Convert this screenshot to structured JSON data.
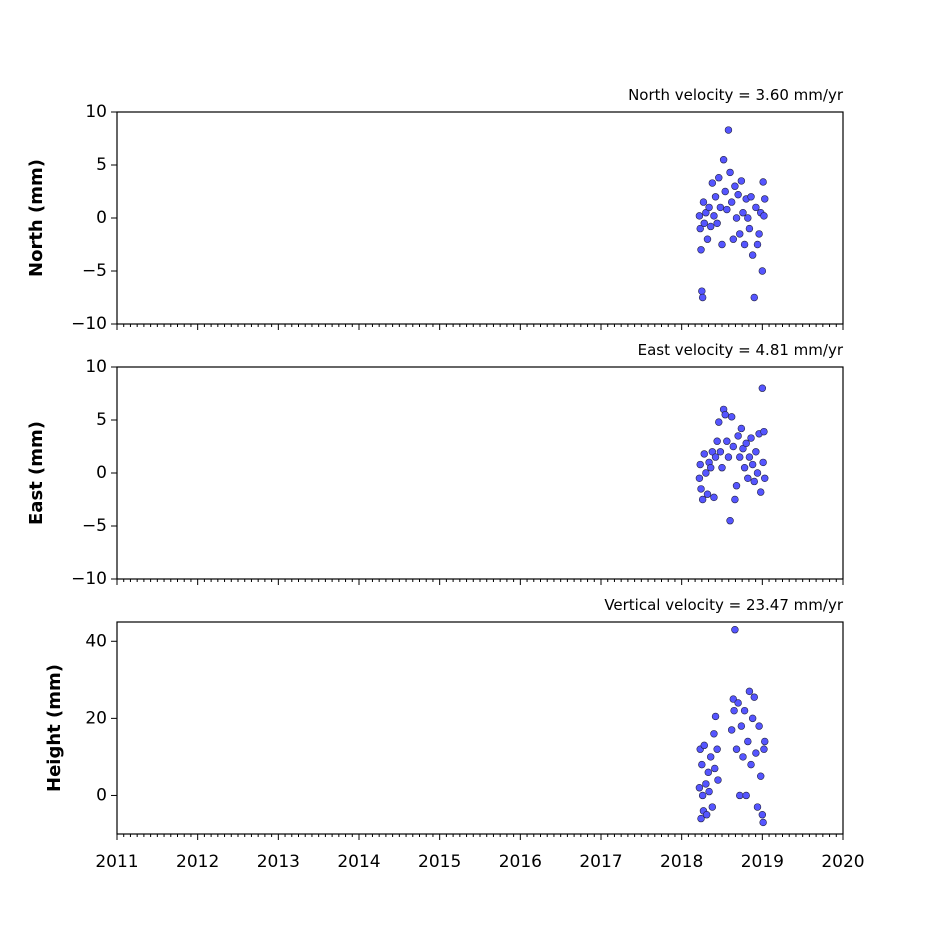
{
  "chart_data": [
    {
      "type": "scatter",
      "title": "North velocity = 3.60 mm/yr",
      "y_label": "North (mm)",
      "color": "#5555ff",
      "edge_color": "#222244",
      "xlim": [
        2011,
        2020
      ],
      "xticks": [
        2011,
        2012,
        2013,
        2014,
        2015,
        2016,
        2017,
        2018,
        2019,
        2020
      ],
      "ylim": [
        -10,
        10
      ],
      "yticks": [
        {
          "value": -10,
          "label": "−10"
        },
        {
          "value": -5,
          "label": "−5"
        },
        0,
        5,
        10
      ],
      "x": [
        2018.22,
        2018.23,
        2018.24,
        2018.25,
        2018.26,
        2018.27,
        2018.28,
        2018.3,
        2018.32,
        2018.34,
        2018.36,
        2018.38,
        2018.4,
        2018.42,
        2018.44,
        2018.46,
        2018.48,
        2018.5,
        2018.52,
        2018.54,
        2018.56,
        2018.58,
        2018.6,
        2018.62,
        2018.64,
        2018.66,
        2018.68,
        2018.7,
        2018.72,
        2018.74,
        2018.76,
        2018.78,
        2018.8,
        2018.82,
        2018.84,
        2018.86,
        2018.88,
        2018.9,
        2018.92,
        2018.94,
        2018.96,
        2018.98,
        2019.0,
        2019.01,
        2019.02,
        2019.03
      ],
      "values": [
        0.2,
        -1,
        -3,
        -6.9,
        -7.5,
        1.5,
        -0.5,
        0.5,
        -2,
        1,
        -0.8,
        3.3,
        0.2,
        2,
        -0.5,
        3.8,
        1,
        -2.5,
        5.5,
        2.5,
        0.8,
        8.3,
        4.3,
        1.5,
        -2,
        3,
        0,
        2.2,
        -1.5,
        3.5,
        0.5,
        -2.5,
        1.8,
        0,
        -1,
        2,
        -3.5,
        -7.5,
        1,
        -2.5,
        -1.5,
        0.5,
        -5,
        3.4,
        0.2,
        1.8
      ]
    },
    {
      "type": "scatter",
      "title": "East velocity = 4.81 mm/yr",
      "y_label": "East (mm)",
      "color": "#5555ff",
      "edge_color": "#222244",
      "xlim": [
        2011,
        2020
      ],
      "xticks": [
        2011,
        2012,
        2013,
        2014,
        2015,
        2016,
        2017,
        2018,
        2019,
        2020
      ],
      "ylim": [
        -10,
        10
      ],
      "yticks": [
        {
          "value": -10,
          "label": "−10"
        },
        {
          "value": -5,
          "label": "−5"
        },
        0,
        5,
        10
      ],
      "x": [
        2018.22,
        2018.23,
        2018.24,
        2018.26,
        2018.28,
        2018.3,
        2018.32,
        2018.34,
        2018.36,
        2018.38,
        2018.4,
        2018.42,
        2018.44,
        2018.46,
        2018.48,
        2018.5,
        2018.52,
        2018.54,
        2018.56,
        2018.58,
        2018.6,
        2018.62,
        2018.64,
        2018.66,
        2018.68,
        2018.7,
        2018.72,
        2018.74,
        2018.76,
        2018.78,
        2018.8,
        2018.82,
        2018.84,
        2018.86,
        2018.88,
        2018.9,
        2018.92,
        2018.94,
        2018.96,
        2018.98,
        2019.0,
        2019.01,
        2019.02,
        2019.03
      ],
      "values": [
        -0.5,
        0.8,
        -1.5,
        -2.5,
        1.8,
        0,
        -2,
        1,
        0.5,
        2,
        -2.3,
        1.5,
        3,
        4.8,
        2,
        0.5,
        6,
        5.5,
        3,
        1.5,
        -4.5,
        5.3,
        2.5,
        -2.5,
        -1.2,
        3.5,
        1.5,
        4.2,
        2.3,
        0.5,
        2.8,
        -0.5,
        1.5,
        3.3,
        0.8,
        -0.8,
        2,
        0,
        3.7,
        -1.8,
        8,
        1,
        3.9,
        -0.5
      ]
    },
    {
      "type": "scatter",
      "title": "Vertical velocity = 23.47 mm/yr",
      "y_label": "Height (mm)",
      "color": "#5555ff",
      "edge_color": "#222244",
      "xlim": [
        2011,
        2020
      ],
      "xticks": [
        2011,
        2012,
        2013,
        2014,
        2015,
        2016,
        2017,
        2018,
        2019,
        2020
      ],
      "xtick_labels": true,
      "ylim": [
        -10,
        45
      ],
      "yticks": [
        0,
        20,
        40
      ],
      "x": [
        2018.22,
        2018.23,
        2018.24,
        2018.25,
        2018.26,
        2018.27,
        2018.28,
        2018.3,
        2018.31,
        2018.33,
        2018.34,
        2018.36,
        2018.38,
        2018.4,
        2018.41,
        2018.42,
        2018.44,
        2018.45,
        2018.62,
        2018.64,
        2018.65,
        2018.66,
        2018.68,
        2018.7,
        2018.72,
        2018.74,
        2018.76,
        2018.78,
        2018.8,
        2018.82,
        2018.84,
        2018.86,
        2018.88,
        2018.9,
        2018.92,
        2018.94,
        2018.96,
        2018.98,
        2019.0,
        2019.01,
        2019.02,
        2019.03
      ],
      "values": [
        2,
        12,
        -6,
        8,
        0,
        -4,
        13,
        3,
        -5,
        6,
        1,
        10,
        -3,
        16,
        7,
        20.5,
        12,
        4,
        17,
        25,
        22,
        43,
        12,
        24,
        0,
        18,
        10,
        22,
        0,
        14,
        27,
        8,
        20,
        25.5,
        11,
        -3,
        18,
        5,
        -5,
        -7,
        12,
        14
      ]
    }
  ]
}
